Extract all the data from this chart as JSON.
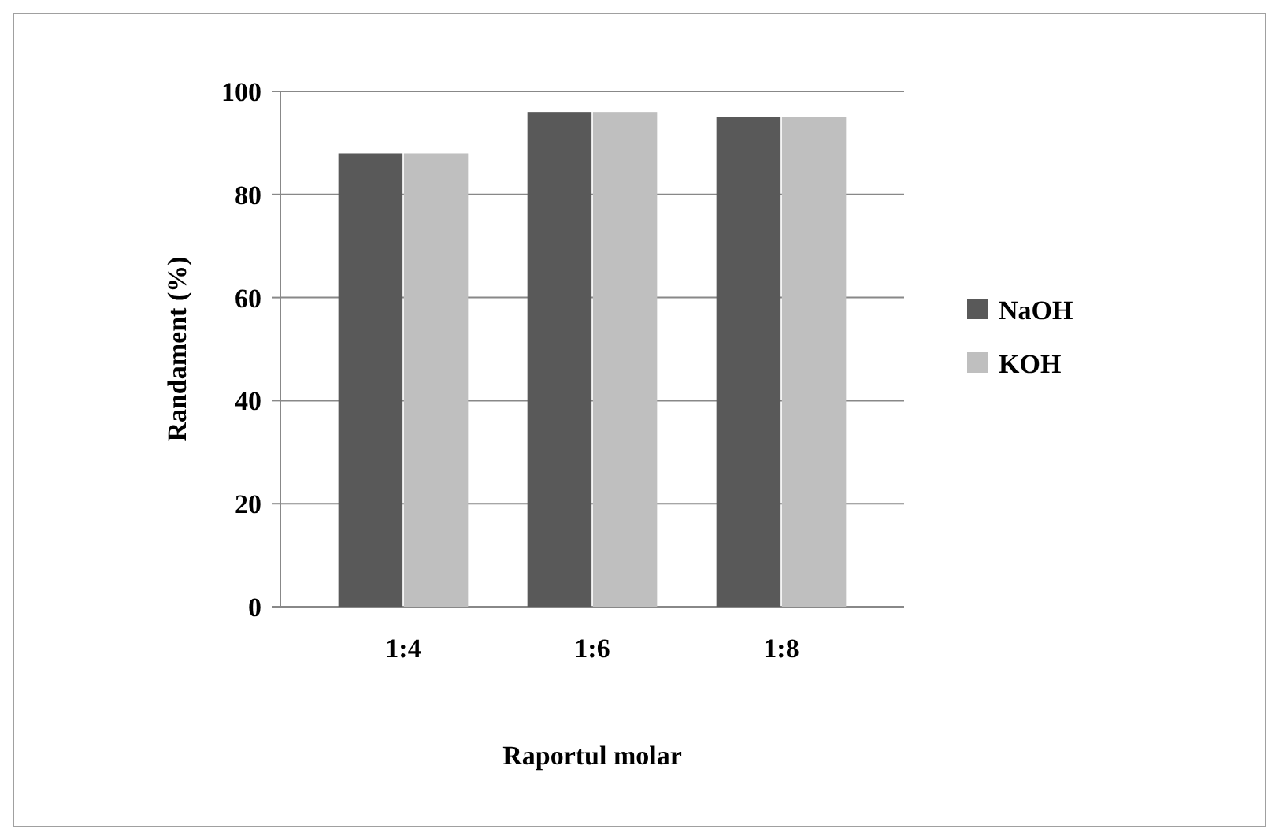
{
  "chart_data": {
    "type": "bar",
    "xlabel": "Raportul molar",
    "ylabel": "Randament (%)",
    "categories": [
      "1:4",
      "1:6",
      "1:8"
    ],
    "series": [
      {
        "name": "NaOH",
        "color": "#595959",
        "values": [
          88,
          96,
          95
        ]
      },
      {
        "name": "KOH",
        "color": "#bfbfbf",
        "values": [
          88,
          96,
          95
        ]
      }
    ],
    "ylim": [
      0,
      100
    ],
    "yticks": [
      0,
      20,
      40,
      60,
      80,
      100
    ],
    "grid": "y",
    "legend": "right"
  }
}
